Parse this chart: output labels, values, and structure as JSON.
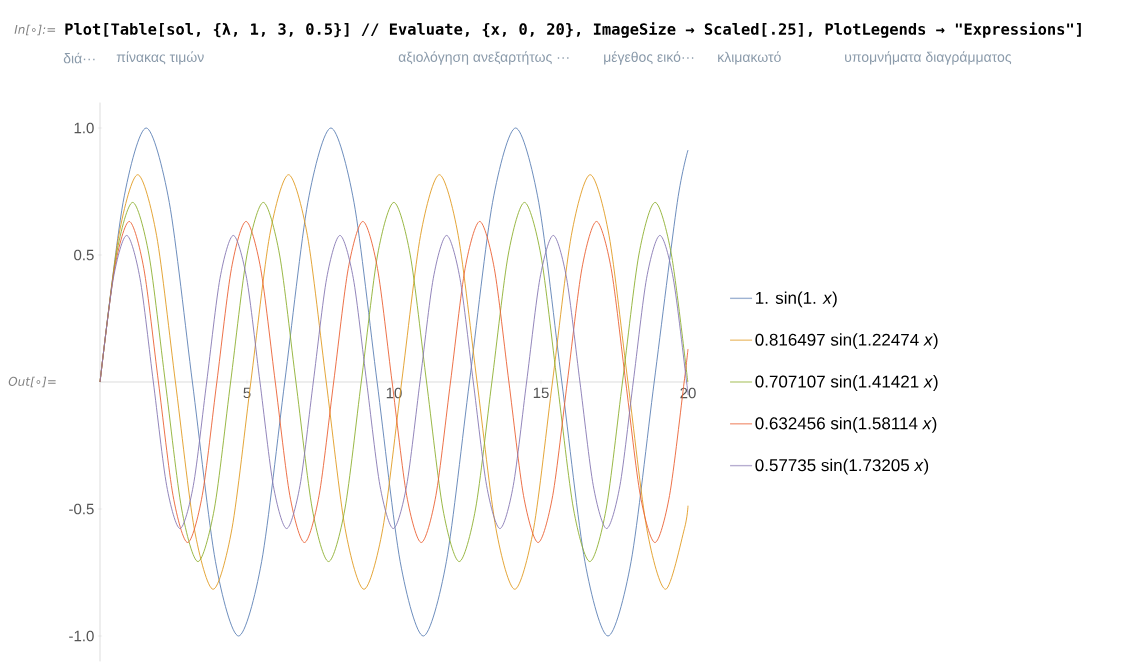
{
  "chart_data": {
    "type": "line",
    "annotations": [
      "In[∘]:=",
      "Plot[Table[sol, {λ, 1, 3, 0.5}] // Evaluate, {x, 0, 20}, ImageSize → Scaled[.25], PlotLegends → \"Expressions\"]",
      "διά···",
      "πίνακας τιμών",
      "αξιολόγηση ανεξαρτήτως ···",
      "μέγεθος εικό···",
      "κλιμακωτό",
      "υπομνήματα διαγράμματος",
      "Out[∘]="
    ],
    "xlim": [
      0,
      20
    ],
    "ylim": [
      -1.1,
      1.1
    ],
    "xticks": [
      5,
      10,
      15,
      20
    ],
    "yticks": [
      {
        "value": -1,
        "label": "-1.0"
      },
      -0.5,
      0.5,
      {
        "value": 1,
        "label": "1.0"
      }
    ],
    "legend": "right",
    "series": [
      {
        "name": "1. sin(1. *x*)",
        "color": "#5e81b5",
        "x": [
          0,
          0.785,
          1.571,
          2.356,
          3.142,
          3.927,
          4.712,
          5.498,
          6.283,
          7.069,
          7.854,
          8.639,
          9.425,
          10.21,
          10.996,
          11.781,
          12.566,
          13.352,
          14.137,
          14.923,
          15.708,
          16.493,
          17.279,
          18.064,
          18.85,
          19.635,
          20
        ],
        "values": [
          0,
          0.707,
          1,
          0.707,
          0,
          -0.707,
          -1,
          -0.707,
          0,
          0.707,
          1,
          0.707,
          0,
          -0.707,
          -1,
          -0.707,
          0,
          0.707,
          1,
          0.707,
          0,
          -0.707,
          -1,
          -0.707,
          0,
          0.707,
          0.913
        ]
      },
      {
        "name": "0.816497 sin(1.22474 *x*)",
        "color": "#e19c24",
        "x": [
          0,
          0.641,
          1.283,
          1.924,
          2.565,
          3.206,
          3.848,
          4.489,
          5.13,
          5.771,
          6.413,
          7.054,
          7.695,
          8.337,
          8.978,
          9.619,
          10.26,
          10.902,
          11.543,
          12.184,
          12.825,
          13.467,
          14.108,
          14.749,
          15.39,
          16.032,
          16.673,
          17.314,
          17.956,
          18.597,
          19.238,
          19.879,
          20
        ],
        "values": [
          0,
          0.577,
          0.816,
          0.577,
          0,
          -0.577,
          -0.816,
          -0.577,
          0,
          0.577,
          0.816,
          0.577,
          0,
          -0.577,
          -0.816,
          -0.577,
          0,
          0.577,
          0.816,
          0.577,
          0,
          -0.577,
          -0.816,
          -0.577,
          0,
          0.577,
          0.816,
          0.577,
          0,
          -0.577,
          -0.816,
          -0.577,
          -0.487
        ]
      },
      {
        "name": "0.707107 sin(1.41421 *x*)",
        "color": "#8fb032",
        "x": [
          0,
          0.555,
          1.111,
          1.666,
          2.221,
          2.777,
          3.332,
          3.888,
          4.443,
          4.998,
          5.554,
          6.109,
          6.664,
          7.22,
          7.775,
          8.33,
          8.886,
          9.441,
          9.996,
          10.552,
          11.107,
          11.663,
          12.218,
          12.773,
          13.329,
          13.884,
          14.439,
          14.995,
          15.55,
          16.105,
          16.661,
          17.216,
          17.772,
          18.327,
          18.882,
          19.438,
          19.993
        ],
        "values": [
          0,
          0.5,
          0.707,
          0.5,
          0,
          -0.5,
          -0.707,
          -0.5,
          0,
          0.5,
          0.707,
          0.5,
          0,
          -0.5,
          -0.707,
          -0.5,
          0,
          0.5,
          0.707,
          0.5,
          0,
          -0.5,
          -0.707,
          -0.5,
          0,
          0.5,
          0.707,
          0.5,
          0,
          -0.5,
          -0.707,
          -0.5,
          0,
          0.5,
          0.707,
          0.5,
          0
        ]
      },
      {
        "name": "0.632456 sin(1.58114 *x*)",
        "color": "#eb6235",
        "x": [
          0,
          0.497,
          0.993,
          1.49,
          1.987,
          2.484,
          2.98,
          3.477,
          3.974,
          4.471,
          4.967,
          5.464,
          5.961,
          6.457,
          6.954,
          7.451,
          7.948,
          8.444,
          8.941,
          9.438,
          9.935,
          10.431,
          10.928,
          11.425,
          11.922,
          12.418,
          12.915,
          13.412,
          13.908,
          14.405,
          14.902,
          15.399,
          15.895,
          16.392,
          16.889,
          17.386,
          17.882,
          18.379,
          18.876,
          19.372,
          19.869,
          20
        ],
        "values": [
          0,
          0.447,
          0.632,
          0.447,
          0,
          -0.447,
          -0.632,
          -0.447,
          0,
          0.447,
          0.632,
          0.447,
          0,
          -0.447,
          -0.632,
          -0.447,
          0,
          0.447,
          0.632,
          0.447,
          0,
          -0.447,
          -0.632,
          -0.447,
          0,
          0.447,
          0.632,
          0.447,
          0,
          -0.447,
          -0.632,
          -0.447,
          0,
          0.447,
          0.632,
          0.447,
          0,
          -0.447,
          -0.632,
          -0.447,
          0,
          0.13
        ]
      },
      {
        "name": "0.57735 sin(1.73205 *x*)",
        "color": "#8778b3",
        "x": [
          0,
          0.453,
          0.907,
          1.36,
          1.814,
          2.267,
          2.721,
          3.174,
          3.628,
          4.081,
          4.535,
          4.988,
          5.441,
          5.895,
          6.348,
          6.802,
          7.255,
          7.709,
          8.162,
          8.616,
          9.069,
          9.522,
          9.976,
          10.429,
          10.883,
          11.336,
          11.79,
          12.243,
          12.697,
          13.15,
          13.604,
          14.057,
          14.51,
          14.964,
          15.417,
          15.871,
          16.324,
          16.778,
          17.231,
          17.685,
          18.138,
          18.591,
          19.045,
          19.498,
          19.952,
          20
        ],
        "values": [
          0,
          0.408,
          0.577,
          0.408,
          0,
          -0.408,
          -0.577,
          -0.408,
          0,
          0.408,
          0.577,
          0.408,
          0,
          -0.408,
          -0.577,
          -0.408,
          0,
          0.408,
          0.577,
          0.408,
          0,
          -0.408,
          -0.577,
          -0.408,
          0,
          0.408,
          0.577,
          0.408,
          0,
          -0.408,
          -0.577,
          -0.408,
          0,
          0.408,
          0.577,
          0.408,
          0,
          -0.408,
          -0.577,
          -0.408,
          0,
          0.408,
          0.577,
          0.408,
          0,
          -0.048
        ]
      }
    ]
  }
}
